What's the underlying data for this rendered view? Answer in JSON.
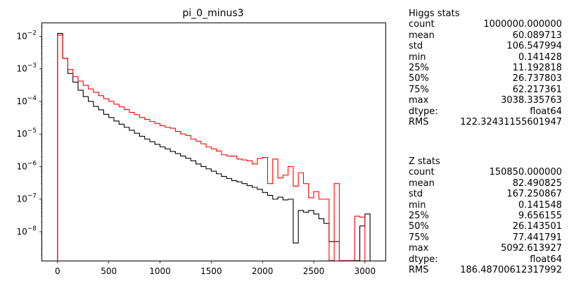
{
  "chart_data": {
    "type": "histogram",
    "title": "pi_0_minus3",
    "xlabel": "",
    "ylabel": "",
    "y_scale": "log",
    "xlim": [
      -150,
      3200
    ],
    "ylim": [
      1.3e-09,
      0.025
    ],
    "x_ticks": [
      "0",
      "500",
      "1000",
      "1500",
      "2000",
      "2500",
      "3000"
    ],
    "x_tick_values": [
      0,
      500,
      1000,
      1500,
      2000,
      2500,
      3000
    ],
    "y_ticks": [
      "10^-8",
      "10^-7",
      "10^-6",
      "10^-5",
      "10^-4",
      "10^-3",
      "10^-2"
    ],
    "y_tick_values": [
      1e-08,
      1e-07,
      1e-06,
      1e-05,
      0.0001,
      0.001,
      0.01
    ],
    "grid": false,
    "series": [
      {
        "color": "#000000",
        "bin_edges": [
          0,
          50,
          100,
          150,
          200,
          250,
          300,
          350,
          400,
          450,
          500,
          550,
          600,
          650,
          700,
          750,
          800,
          850,
          900,
          950,
          1000,
          1050,
          1100,
          1150,
          1200,
          1250,
          1300,
          1350,
          1400,
          1450,
          1500,
          1550,
          1600,
          1650,
          1700,
          1750,
          1800,
          1850,
          1900,
          1950,
          2000,
          2050,
          2100,
          2150,
          2200,
          2250,
          2300,
          2350,
          2400,
          2450,
          2500,
          2550,
          2600,
          2650,
          2700,
          2750,
          2800,
          2850,
          2900,
          2950,
          3000,
          3050
        ],
        "values": [
          0.0122,
          0.0021,
          0.00072,
          0.00039,
          0.00022,
          0.00014,
          0.0001,
          7e-05,
          5.5e-05,
          4e-05,
          3.2e-05,
          2.5e-05,
          2e-05,
          1.6e-05,
          1.3e-05,
          1.05e-05,
          8.5e-06,
          7e-06,
          5.8e-06,
          4.8e-06,
          4e-06,
          3.5e-06,
          2.9e-06,
          2.5e-06,
          2.1e-06,
          1.8e-06,
          1.5e-06,
          1.2e-06,
          1e-06,
          8.5e-07,
          7.2e-07,
          6e-07,
          5e-07,
          4.3e-07,
          3.7e-07,
          3.4e-07,
          3e-07,
          2.6e-07,
          2.3e-07,
          2e-07,
          1.6e-07,
          1.3e-07,
          1e-07,
          1.15e-07,
          9.5e-08,
          1e-07,
          4.5e-09,
          4.5e-08,
          4e-08,
          4.5e-08,
          3.5e-08,
          2.5e-08,
          1.8e-08,
          5e-09,
          5e-09,
          0,
          0,
          0,
          0,
          1.5e-08,
          3.5e-08
        ]
      },
      {
        "color": "#ff0000",
        "bin_edges": [
          0,
          50,
          100,
          150,
          200,
          250,
          300,
          350,
          400,
          450,
          500,
          550,
          600,
          650,
          700,
          750,
          800,
          850,
          900,
          950,
          1000,
          1050,
          1100,
          1150,
          1200,
          1250,
          1300,
          1350,
          1400,
          1450,
          1500,
          1550,
          1600,
          1650,
          1700,
          1750,
          1800,
          1850,
          1900,
          1950,
          2000,
          2050,
          2100,
          2150,
          2200,
          2250,
          2300,
          2350,
          2400,
          2450,
          2500,
          2550,
          2600,
          2650,
          2700,
          2750,
          2800,
          2850,
          2900,
          2950,
          3000
        ],
        "values": [
          0.0108,
          0.0021,
          0.00095,
          0.00058,
          0.00042,
          0.00031,
          0.00024,
          0.00019,
          0.00015,
          0.00012,
          0.0001,
          8.2e-05,
          6.8e-05,
          5.6e-05,
          4.6e-05,
          3.9e-05,
          3.2e-05,
          2.8e-05,
          2.4e-05,
          2.1e-05,
          1.8e-05,
          1.6e-05,
          1.5e-05,
          1.2e-05,
          1e-05,
          9e-06,
          7e-06,
          6e-06,
          5e-06,
          4e-06,
          3.5e-06,
          3e-06,
          2.3e-06,
          2.1e-06,
          2.1e-06,
          1.7e-06,
          1.6e-06,
          1.5e-06,
          1.2e-06,
          1.8e-06,
          1.9e-06,
          3e-07,
          1.7e-06,
          4.5e-07,
          5.5e-07,
          1e-06,
          2.5e-07,
          6.5e-07,
          3e-07,
          1.1e-07,
          1.7e-07,
          1e-07,
          1e-07,
          0,
          3e-07,
          0,
          0,
          0,
          3e-08,
          2.8e-08
        ]
      }
    ]
  },
  "stats": {
    "higgs": {
      "title": "Higgs stats",
      "rows": [
        {
          "key": "count",
          "value": "1000000.000000"
        },
        {
          "key": "mean",
          "value": "60.089713"
        },
        {
          "key": "std",
          "value": "106.547994"
        },
        {
          "key": "min",
          "value": "0.141428"
        },
        {
          "key": "25%",
          "value": "11.192818"
        },
        {
          "key": "50%",
          "value": "26.737803"
        },
        {
          "key": "75%",
          "value": "62.217361"
        },
        {
          "key": "max",
          "value": "3038.335763"
        },
        {
          "key": "dtype:",
          "value": "float64"
        },
        {
          "key": "RMS",
          "value": "122.32431155601947"
        }
      ]
    },
    "z": {
      "title": "Z stats",
      "rows": [
        {
          "key": "count",
          "value": "150850.000000"
        },
        {
          "key": "mean",
          "value": "82.490825"
        },
        {
          "key": "std",
          "value": "167.250867"
        },
        {
          "key": "min",
          "value": "0.141548"
        },
        {
          "key": "25%",
          "value": "9.656155"
        },
        {
          "key": "50%",
          "value": "26.143501"
        },
        {
          "key": "75%",
          "value": "77.441791"
        },
        {
          "key": "max",
          "value": "5092.613927"
        },
        {
          "key": "dtype:",
          "value": "float64"
        },
        {
          "key": "RMS",
          "value": "186.48700612317992"
        }
      ]
    }
  }
}
